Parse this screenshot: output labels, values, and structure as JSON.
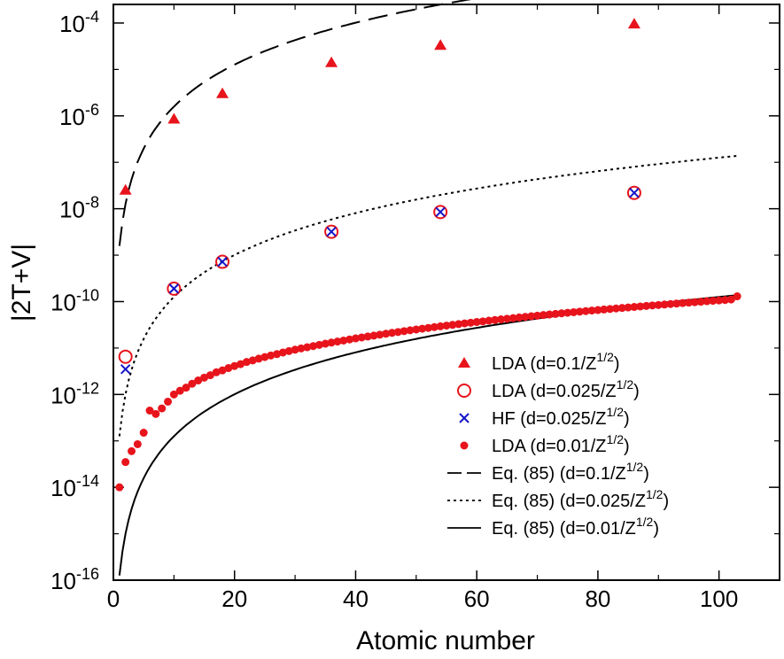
{
  "chart_data": {
    "type": "scatter",
    "xlabel": "Atomic number",
    "ylabel": "|2T+V|",
    "xlim": [
      0,
      110
    ],
    "ylim_log10": [
      -16,
      -3.6
    ],
    "y_scale": "log",
    "x_ticks": [
      {
        "value": 0,
        "label": "0"
      },
      {
        "value": 20,
        "label": "20"
      },
      {
        "value": 40,
        "label": "40"
      },
      {
        "value": 60,
        "label": "60"
      },
      {
        "value": 80,
        "label": "80"
      },
      {
        "value": 100,
        "label": "100"
      }
    ],
    "y_ticks": [
      {
        "exp": -16,
        "base": "10",
        "sup": "-16"
      },
      {
        "exp": -14,
        "base": "10",
        "sup": "-14"
      },
      {
        "exp": -12,
        "base": "10",
        "sup": "-12"
      },
      {
        "exp": -10,
        "base": "10",
        "sup": "-10"
      },
      {
        "exp": -8,
        "base": "10",
        "sup": "-8"
      },
      {
        "exp": -6,
        "base": "10",
        "sup": "-6"
      },
      {
        "exp": -4,
        "base": "10",
        "sup": "-4"
      }
    ],
    "legend_position": "bottom-right",
    "legend": [
      {
        "marker": "triangle",
        "text": "LDA (d=0.1/Z",
        "sup": "1/2",
        "close": ")"
      },
      {
        "marker": "open-circle",
        "text": "LDA (d=0.025/Z",
        "sup": "1/2",
        "close": ")"
      },
      {
        "marker": "cross",
        "text": "HF (d=0.025/Z",
        "sup": "1/2",
        "close": ")"
      },
      {
        "marker": "filled-circle",
        "text": "LDA (d=0.01/Z",
        "sup": "1/2",
        "close": ")"
      },
      {
        "marker": "dashed-line",
        "text": "Eq. (85) (d=0.1/Z",
        "sup": "1/2",
        "close": ")"
      },
      {
        "marker": "dotted-line",
        "text": "Eq. (85) (d=0.025/Z",
        "sup": "1/2",
        "close": ")"
      },
      {
        "marker": "solid-line",
        "text": "Eq. (85) (d=0.01/Z",
        "sup": "1/2",
        "close": ")"
      }
    ],
    "series": [
      {
        "name": "LDA (d=0.1/Z^1/2)",
        "kind": "marker",
        "marker": "triangle",
        "color": "#e8141c",
        "x": [
          2,
          10,
          18,
          36,
          54,
          86
        ],
        "y": [
          2.5e-08,
          8.5e-07,
          3e-06,
          1.4e-05,
          3.3e-05,
          9.5e-05
        ]
      },
      {
        "name": "LDA (d=0.025/Z^1/2)",
        "kind": "marker",
        "marker": "open-circle",
        "color": "#e8141c",
        "x": [
          2,
          10,
          18,
          36,
          54,
          86
        ],
        "y": [
          6.5e-12,
          1.9e-10,
          7.2e-10,
          3.2e-09,
          8.5e-09,
          2.2e-08
        ]
      },
      {
        "name": "HF (d=0.025/Z^1/2)",
        "kind": "marker",
        "marker": "cross",
        "color": "#1414c8",
        "x": [
          2,
          10,
          18,
          36,
          54,
          86
        ],
        "y": [
          3.5e-12,
          1.9e-10,
          7.2e-10,
          3.2e-09,
          8.5e-09,
          2.2e-08
        ]
      },
      {
        "name": "LDA (d=0.01/Z^1/2)",
        "kind": "marker",
        "marker": "filled-circle",
        "color": "#e8141c",
        "x": [
          1,
          2,
          3,
          4,
          5,
          6,
          7,
          8,
          9,
          10,
          11,
          12,
          13,
          14,
          15,
          16,
          17,
          18,
          19,
          20,
          21,
          22,
          23,
          24,
          25,
          26,
          27,
          28,
          29,
          30,
          31,
          32,
          33,
          34,
          35,
          36,
          37,
          38,
          39,
          40,
          41,
          42,
          43,
          44,
          45,
          46,
          47,
          48,
          49,
          50,
          51,
          52,
          53,
          54,
          55,
          56,
          57,
          58,
          59,
          60,
          61,
          62,
          63,
          64,
          65,
          66,
          67,
          68,
          69,
          70,
          71,
          72,
          73,
          74,
          75,
          76,
          77,
          78,
          79,
          80,
          81,
          82,
          83,
          84,
          85,
          86,
          87,
          88,
          89,
          90,
          91,
          92,
          93,
          94,
          95,
          96,
          97,
          98,
          99,
          100,
          101,
          102,
          103
        ],
        "y": [
          1e-14,
          3.5e-14,
          6e-14,
          8.5e-14,
          1.5e-13,
          4.5e-13,
          3.8e-13,
          5e-13,
          7e-13,
          1e-12,
          1.2e-12,
          1.4e-12,
          1.7e-12,
          2e-12,
          2.3e-12,
          2.6e-12,
          3e-12,
          3.3e-12,
          3.7e-12,
          4.1e-12,
          4.5e-12,
          5e-12,
          5.4e-12,
          5.9e-12,
          6.4e-12,
          6.9e-12,
          7.4e-12,
          8e-12,
          8.6e-12,
          9.2e-12,
          9.8e-12,
          1.04e-11,
          1.1e-11,
          1.17e-11,
          1.24e-11,
          1.31e-11,
          1.38e-11,
          1.45e-11,
          1.53e-11,
          1.61e-11,
          1.69e-11,
          1.77e-11,
          1.85e-11,
          1.94e-11,
          2.03e-11,
          2.12e-11,
          2.21e-11,
          2.31e-11,
          2.41e-11,
          2.51e-11,
          2.61e-11,
          2.71e-11,
          2.82e-11,
          2.93e-11,
          3.04e-11,
          3.15e-11,
          3.27e-11,
          3.39e-11,
          3.51e-11,
          3.63e-11,
          3.75e-11,
          3.88e-11,
          4.01e-11,
          4.14e-11,
          4.27e-11,
          4.41e-11,
          4.55e-11,
          4.69e-11,
          4.83e-11,
          4.98e-11,
          5.13e-11,
          5.28e-11,
          5.43e-11,
          5.59e-11,
          5.75e-11,
          5.91e-11,
          6.07e-11,
          6.24e-11,
          6.41e-11,
          6.58e-11,
          6.75e-11,
          6.93e-11,
          7.11e-11,
          7.29e-11,
          7.48e-11,
          7.67e-11,
          7.86e-11,
          8.05e-11,
          8.25e-11,
          8.45e-11,
          8.65e-11,
          8.86e-11,
          9.07e-11,
          9.28e-11,
          9.49e-11,
          9.71e-11,
          9.93e-11,
          1.02e-10,
          1.04e-10,
          1.06e-10,
          1.08e-10,
          1.11e-10,
          1.3e-10
        ]
      },
      {
        "name": "Eq. (85) (d=0.1/Z^1/2)",
        "kind": "line",
        "dash": "dashed",
        "color": "#000000",
        "power": 3,
        "coef_log10": -8.8,
        "xrange": [
          1,
          103
        ]
      },
      {
        "name": "Eq. (85) (d=0.025/Z^1/2)",
        "kind": "line",
        "dash": "dotted",
        "color": "#000000",
        "power": 3,
        "coef_log10": -12.9,
        "xrange": [
          1,
          103
        ]
      },
      {
        "name": "Eq. (85) (d=0.01/Z^1/2)",
        "kind": "line",
        "dash": "solid",
        "color": "#000000",
        "power": 3,
        "coef_log10": -15.9,
        "xrange": [
          1,
          103
        ]
      }
    ]
  }
}
